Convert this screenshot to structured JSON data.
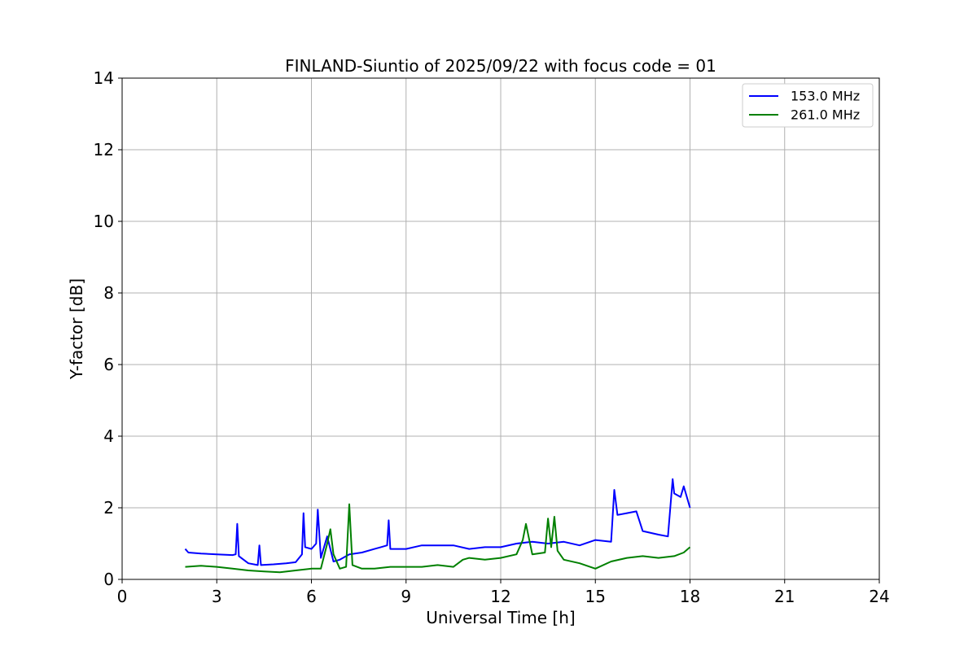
{
  "chart_data": {
    "type": "line",
    "title": "FINLAND-Siuntio of 2025/09/22 with focus code = 01",
    "xlabel": "Universal Time [h]",
    "ylabel": "Y-factor [dB]",
    "xlim": [
      0,
      24
    ],
    "ylim": [
      0,
      14
    ],
    "xticks": [
      0,
      3,
      6,
      9,
      12,
      15,
      18,
      21,
      24
    ],
    "yticks": [
      0,
      2,
      4,
      6,
      8,
      10,
      12,
      14
    ],
    "grid": true,
    "legend_position": "top-right",
    "series": [
      {
        "name": "153.0 MHz",
        "color": "#0000ff",
        "x": [
          2.0,
          2.1,
          2.5,
          3.0,
          3.5,
          3.6,
          3.65,
          3.7,
          4.0,
          4.3,
          4.35,
          4.4,
          4.8,
          5.2,
          5.5,
          5.7,
          5.75,
          5.8,
          6.0,
          6.15,
          6.2,
          6.3,
          6.5,
          6.7,
          6.9,
          7.2,
          7.6,
          8.0,
          8.2,
          8.4,
          8.45,
          8.5,
          9.0,
          9.5,
          10.0,
          10.5,
          11.0,
          11.5,
          12.0,
          12.5,
          13.0,
          13.5,
          14.0,
          14.5,
          15.0,
          15.5,
          15.6,
          15.7,
          16.0,
          16.3,
          16.5,
          17.0,
          17.3,
          17.45,
          17.5,
          17.7,
          17.8,
          18.0
        ],
        "y": [
          0.85,
          0.75,
          0.72,
          0.7,
          0.68,
          0.7,
          1.55,
          0.65,
          0.45,
          0.4,
          0.95,
          0.4,
          0.42,
          0.45,
          0.48,
          0.7,
          1.85,
          0.9,
          0.85,
          1.0,
          1.95,
          0.6,
          1.2,
          0.5,
          0.55,
          0.7,
          0.75,
          0.85,
          0.9,
          0.95,
          1.65,
          0.85,
          0.85,
          0.95,
          0.95,
          0.95,
          0.85,
          0.9,
          0.9,
          1.0,
          1.05,
          1.0,
          1.05,
          0.95,
          1.1,
          1.05,
          2.5,
          1.8,
          1.85,
          1.9,
          1.35,
          1.25,
          1.2,
          2.8,
          2.4,
          2.3,
          2.6,
          2.0
        ]
      },
      {
        "name": "261.0 MHz",
        "color": "#008000",
        "x": [
          2.0,
          2.5,
          3.0,
          3.5,
          4.0,
          4.5,
          5.0,
          5.5,
          6.0,
          6.3,
          6.5,
          6.6,
          6.7,
          6.9,
          7.1,
          7.2,
          7.3,
          7.6,
          8.0,
          8.5,
          9.0,
          9.5,
          10.0,
          10.5,
          10.8,
          11.0,
          11.5,
          12.0,
          12.5,
          12.7,
          12.8,
          13.0,
          13.4,
          13.5,
          13.6,
          13.7,
          13.8,
          14.0,
          14.5,
          15.0,
          15.5,
          16.0,
          16.5,
          17.0,
          17.5,
          17.8,
          18.0
        ],
        "y": [
          0.35,
          0.38,
          0.35,
          0.3,
          0.25,
          0.22,
          0.2,
          0.25,
          0.3,
          0.3,
          1.0,
          1.4,
          0.7,
          0.3,
          0.35,
          2.1,
          0.4,
          0.3,
          0.3,
          0.35,
          0.35,
          0.35,
          0.4,
          0.35,
          0.55,
          0.6,
          0.55,
          0.6,
          0.7,
          1.1,
          1.55,
          0.7,
          0.75,
          1.7,
          0.9,
          1.75,
          0.8,
          0.55,
          0.45,
          0.3,
          0.5,
          0.6,
          0.65,
          0.6,
          0.65,
          0.75,
          0.9
        ]
      }
    ]
  }
}
